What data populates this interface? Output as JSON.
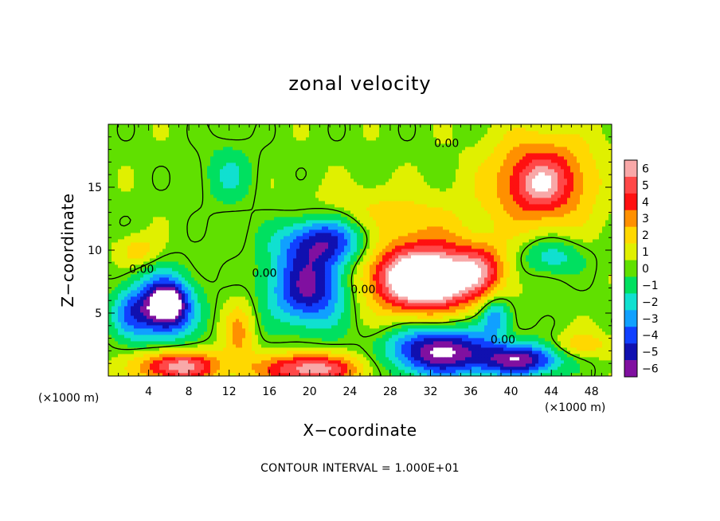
{
  "chart_data": {
    "type": "heatmap",
    "title": "zonal velocity",
    "xlabel": "X−coordinate",
    "ylabel": "Z−coordinate",
    "x_unit_label": "(×1000 m)",
    "x_unit_label_right": "(×1000 m)",
    "xlim": [
      0,
      50
    ],
    "ylim": [
      0,
      20
    ],
    "x_ticks": [
      4,
      8,
      12,
      16,
      20,
      24,
      28,
      32,
      36,
      40,
      44,
      48
    ],
    "x_tick_labels": [
      "4",
      "8",
      "12",
      "16",
      "20",
      "24",
      "28",
      "32",
      "36",
      "40",
      "44",
      "48"
    ],
    "y_ticks": [
      5,
      10,
      15
    ],
    "y_tick_labels": [
      "5",
      "10",
      "15"
    ],
    "colorbar": {
      "levels": [
        6,
        5,
        4,
        3,
        2,
        1,
        0,
        -1,
        -2,
        -3,
        -4,
        -5,
        -6
      ],
      "labels": [
        "6",
        "5",
        "4",
        "3",
        "2",
        "1",
        "0",
        "−1",
        "−2",
        "−3",
        "−4",
        "−5",
        "−6"
      ],
      "colors": [
        "#f8a8a8",
        "#ff4848",
        "#ff1010",
        "#ff9000",
        "#ffd800",
        "#e0f000",
        "#60e000",
        "#00e060",
        "#10e0d0",
        "#10a0ff",
        "#1040ff",
        "#1010b0",
        "#8010a0"
      ]
    },
    "contour_labels": [
      {
        "text": "0.00",
        "x": 33.6,
        "z": 18.5
      },
      {
        "text": "0.00",
        "x": 3.3,
        "z": 8.5
      },
      {
        "text": "0.00",
        "x": 15.5,
        "z": 8.2
      },
      {
        "text": "0.00",
        "x": 25.3,
        "z": 6.9
      },
      {
        "text": "0.00",
        "x": 39.2,
        "z": 2.9
      }
    ],
    "contour_interval_text": "CONTOUR INTERVAL = 1.000E+01",
    "field_blobs": [
      {
        "x": 43,
        "z": 15.5,
        "rx": 5,
        "ry": 3.5,
        "v": 5
      },
      {
        "x": 43,
        "z": 15.2,
        "rx": 2,
        "ry": 1.5,
        "v": 1.5
      },
      {
        "x": 31,
        "z": 8,
        "rx": 6,
        "ry": 3,
        "v": 7
      },
      {
        "x": 32,
        "z": 7.5,
        "rx": 3.5,
        "ry": 1.8,
        "v": 4
      },
      {
        "x": 37,
        "z": 8.5,
        "rx": 2.5,
        "ry": 2,
        "v": 3
      },
      {
        "x": 5.5,
        "z": 5.5,
        "rx": 3,
        "ry": 2.5,
        "v": -7
      },
      {
        "x": 6,
        "z": 5.8,
        "rx": 1.5,
        "ry": 1.3,
        "v": -3
      },
      {
        "x": 20,
        "z": 7,
        "rx": 4,
        "ry": 3,
        "v": -6
      },
      {
        "x": 21.5,
        "z": 10.8,
        "rx": 4.5,
        "ry": 2,
        "v": -5
      },
      {
        "x": 33,
        "z": 2,
        "rx": 5,
        "ry": 2,
        "v": -7
      },
      {
        "x": 41,
        "z": 1.3,
        "rx": 4,
        "ry": 1.3,
        "v": -6
      },
      {
        "x": 20,
        "z": 0.6,
        "rx": 5,
        "ry": 1.2,
        "v": 6
      },
      {
        "x": 7,
        "z": 0.8,
        "rx": 4,
        "ry": 1.2,
        "v": 6
      },
      {
        "x": 13,
        "z": 3.5,
        "rx": 1.5,
        "ry": 2.5,
        "v": 2.5
      },
      {
        "x": 27,
        "z": 13,
        "rx": 8,
        "ry": 2,
        "v": 1.5
      },
      {
        "x": 12,
        "z": 16,
        "rx": 2.5,
        "ry": 2.5,
        "v": -1.8
      },
      {
        "x": 44,
        "z": 9.5,
        "rx": 3,
        "ry": 1.5,
        "v": -2.5
      },
      {
        "x": 2,
        "z": 5,
        "rx": 2,
        "ry": 2,
        "v": -2.5
      },
      {
        "x": 47,
        "z": 2.5,
        "rx": 3,
        "ry": 1,
        "v": 2
      },
      {
        "x": 3,
        "z": 10,
        "rx": 2,
        "ry": 1.2,
        "v": 2
      },
      {
        "x": 38.5,
        "z": 4.8,
        "rx": 1.5,
        "ry": 1.5,
        "v": -3.5
      }
    ]
  }
}
